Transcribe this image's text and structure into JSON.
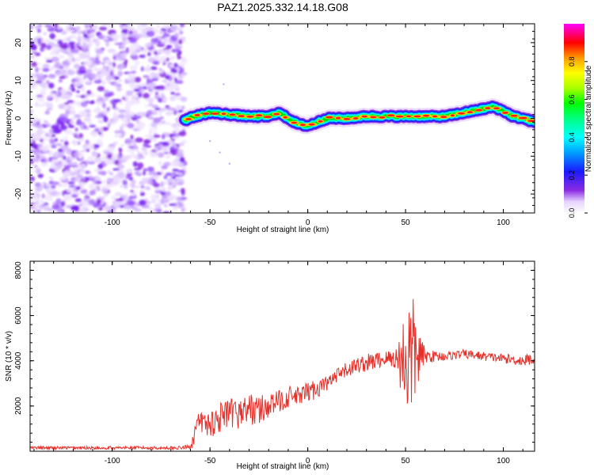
{
  "figure": {
    "title": "PAZ1.2025.332.14.18.G08"
  },
  "chart_data": [
    {
      "type": "heatmap",
      "name": "spectrogram",
      "xlabel": "Height of straight line (km)",
      "ylabel": "Frequency (Hz)",
      "xlim": [
        -142,
        116
      ],
      "ylim": [
        -25,
        25
      ],
      "xticks": [
        -100,
        -50,
        0,
        50,
        100
      ],
      "yticks": [
        -20,
        -10,
        0,
        10,
        20
      ],
      "noise_region_x": [
        -142,
        -63
      ],
      "signal_trace": {
        "description_values": "center frequency of signal ridge vs height",
        "x": [
          -63,
          -58,
          -50,
          -40,
          -30,
          -20,
          -15,
          -10,
          -5,
          0,
          5,
          10,
          20,
          30,
          40,
          50,
          55,
          60,
          70,
          80,
          90,
          95,
          100,
          105,
          110,
          116
        ],
        "freq": [
          -0.5,
          0.5,
          1.5,
          1.0,
          0.5,
          0.5,
          1.5,
          0.0,
          -1.5,
          -2.0,
          -1.0,
          0.0,
          0.0,
          0.5,
          0.5,
          0.5,
          0.5,
          0.5,
          0.5,
          1.5,
          2.5,
          3.0,
          2.0,
          0.5,
          0.0,
          -1.0
        ]
      },
      "colorbar": {
        "label": "Normalized spectral amplitude",
        "min": 0.0,
        "max": 1.0,
        "ticks": [
          0.0,
          0.2,
          0.4,
          0.6,
          0.8
        ],
        "tick_labels": [
          "0.0",
          "0.2",
          "0.4",
          "0.6",
          "0.8"
        ]
      }
    },
    {
      "type": "line",
      "name": "snr",
      "xlabel": "Height of straight line (km)",
      "ylabel": "SNR (10 * v/v)",
      "xlim": [
        -142,
        116
      ],
      "ylim": [
        0,
        8400
      ],
      "xticks": [
        -100,
        -50,
        0,
        50,
        100
      ],
      "yticks": [
        2000,
        4000,
        6000,
        8000
      ],
      "color": "#e8302a",
      "series": {
        "x": [
          -142,
          -120,
          -100,
          -80,
          -65,
          -60,
          -58,
          -55,
          -50,
          -45,
          -40,
          -35,
          -30,
          -25,
          -20,
          -15,
          -10,
          -5,
          0,
          5,
          10,
          15,
          20,
          25,
          30,
          35,
          40,
          45,
          48,
          50,
          52,
          54,
          56,
          60,
          70,
          80,
          90,
          100,
          110,
          116
        ],
        "y": [
          150,
          150,
          150,
          150,
          150,
          200,
          800,
          1300,
          1200,
          1500,
          1600,
          1700,
          1900,
          1800,
          2000,
          2200,
          2400,
          2400,
          2600,
          2800,
          3000,
          3300,
          3600,
          3800,
          3900,
          4000,
          4100,
          4100,
          4000,
          4200,
          4100,
          4300,
          4200,
          4200,
          4200,
          4300,
          4200,
          4100,
          4000,
          4100
        ],
        "noise_amplitude": [
          70,
          70,
          70,
          70,
          70,
          100,
          600,
          500,
          600,
          700,
          700,
          700,
          700,
          700,
          500,
          500,
          500,
          450,
          450,
          450,
          350,
          350,
          350,
          350,
          400,
          400,
          350,
          500,
          1500,
          3000,
          3000,
          2500,
          1500,
          300,
          200,
          200,
          200,
          200,
          250,
          300
        ]
      }
    }
  ]
}
